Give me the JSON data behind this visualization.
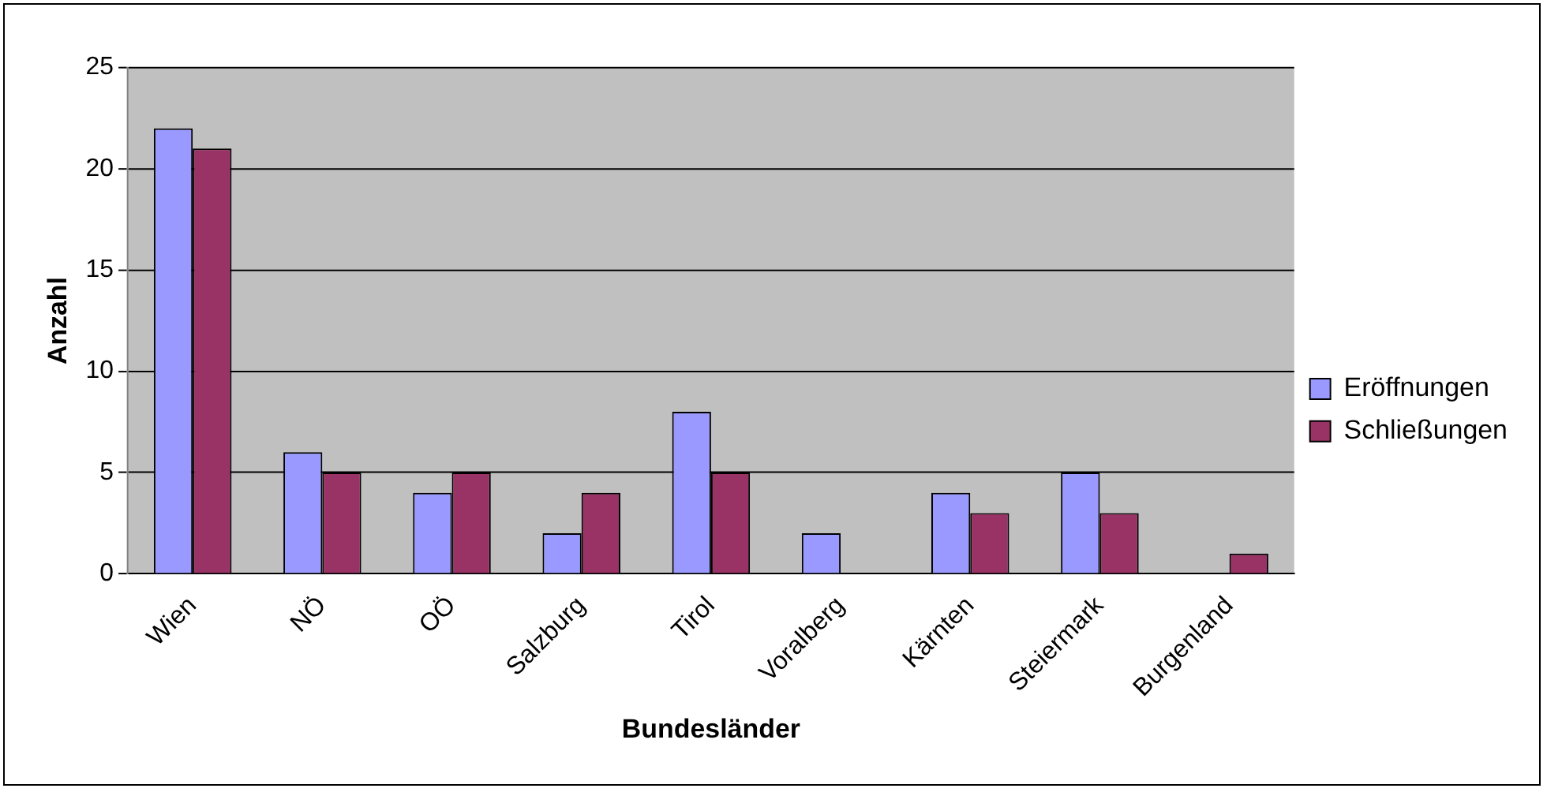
{
  "chart_data": {
    "type": "bar",
    "xlabel": "Bundesländer",
    "ylabel": "Anzahl",
    "categories": [
      "Wien",
      "NÖ",
      "OÖ",
      "Salzburg",
      "Tirol",
      "Voralberg",
      "Kärnten",
      "Steiermark",
      "Burgenland"
    ],
    "series": [
      {
        "name": "Eröffnungen",
        "color": "#9999ff",
        "values": [
          22,
          6,
          4,
          2,
          8,
          2,
          4,
          5,
          0
        ]
      },
      {
        "name": "Schließungen",
        "color": "#993366",
        "values": [
          21,
          5,
          5,
          4,
          5,
          0,
          3,
          3,
          1
        ]
      }
    ],
    "ylim": [
      0,
      25
    ],
    "yticks": [
      0,
      5,
      10,
      15,
      20,
      25
    ],
    "grid": "y",
    "legend": "right"
  }
}
